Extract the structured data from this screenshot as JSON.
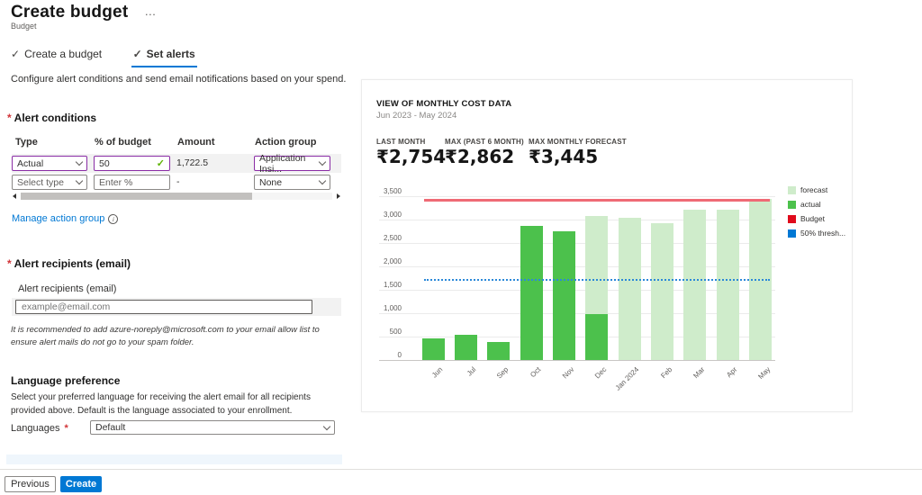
{
  "icons": {
    "check": "✓",
    "valid_check": "✓",
    "info": "i"
  },
  "misc": {
    "required": "*",
    "more": "…"
  },
  "header": {
    "title": "Create budget",
    "subtitle": "Budget"
  },
  "tabs": [
    {
      "label": "Create a budget"
    },
    {
      "label": "Set alerts"
    }
  ],
  "description": "Configure alert conditions and send email notifications based on your spend.",
  "alert_conditions": {
    "heading": "Alert conditions",
    "columns": [
      "Type",
      "% of budget",
      "Amount",
      "Action group"
    ],
    "rows": [
      {
        "type": "Actual",
        "percent": "50",
        "amount": "1,722.5",
        "action_group": "Application Insi..."
      },
      {
        "type": "Select type",
        "percent_placeholder": "Enter %",
        "amount": "-",
        "action_group": "None"
      }
    ],
    "manage_link": "Manage action group"
  },
  "recipients": {
    "heading": "Alert recipients (email)",
    "label": "Alert recipients (email)",
    "placeholder": "example@email.com",
    "note": "It is recommended to add azure-noreply@microsoft.com to your email allow list to ensure alert mails do not go to your spam folder."
  },
  "language": {
    "heading": "Language preference",
    "description": "Select your preferred language for receiving the alert email for all recipients provided above. Default is the language associated to your enrollment.",
    "label": "Languages",
    "value": "Default"
  },
  "footer": {
    "previous": "Previous",
    "create": "Create"
  },
  "chart": {
    "title": "VIEW OF MONTHLY COST DATA",
    "date_range": "Jun 2023 - May 2024",
    "stats": [
      {
        "label": "LAST MONTH",
        "value": "₹2,754"
      },
      {
        "label": "MAX (PAST 6 MONTH)",
        "value": "₹2,862"
      },
      {
        "label": "MAX MONTHLY FORECAST",
        "value": "₹3,445"
      }
    ]
  },
  "chart_data": {
    "type": "bar",
    "stacked": true,
    "title": "VIEW OF MONTHLY COST DATA",
    "subtitle": "Jun 2023 - May 2024",
    "categories": [
      "Jun",
      "Jul",
      "Sep",
      "Oct",
      "Nov",
      "Dec",
      "Jan 2024",
      "Feb",
      "Mar",
      "Apr",
      "May"
    ],
    "series": [
      {
        "name": "actual",
        "color": "#4cc14c",
        "values": [
          470,
          545,
          390,
          2862,
          2754,
          975,
          0,
          0,
          0,
          0,
          0
        ]
      },
      {
        "name": "forecast",
        "color": "#cfeccb",
        "values": [
          0,
          0,
          0,
          0,
          0,
          2105,
          3040,
          2925,
          3220,
          3210,
          3445
        ]
      }
    ],
    "lines": [
      {
        "name": "Budget",
        "value": 3445,
        "color": "#ef6a75",
        "style": "solid"
      },
      {
        "name": "50% threshold",
        "value": 1722.5,
        "color": "#2b88d8",
        "style": "dotted"
      }
    ],
    "ylim": [
      0,
      3500
    ],
    "ytick_step": 500,
    "grid": true,
    "legend_position": "right",
    "legend": [
      {
        "label": "forecast",
        "color": "#cfeccb"
      },
      {
        "label": "actual",
        "color": "#4cc14c"
      },
      {
        "label": "Budget",
        "color": "#e00b1c"
      },
      {
        "label": "50% thresh...",
        "color": "#0078d4"
      }
    ]
  }
}
